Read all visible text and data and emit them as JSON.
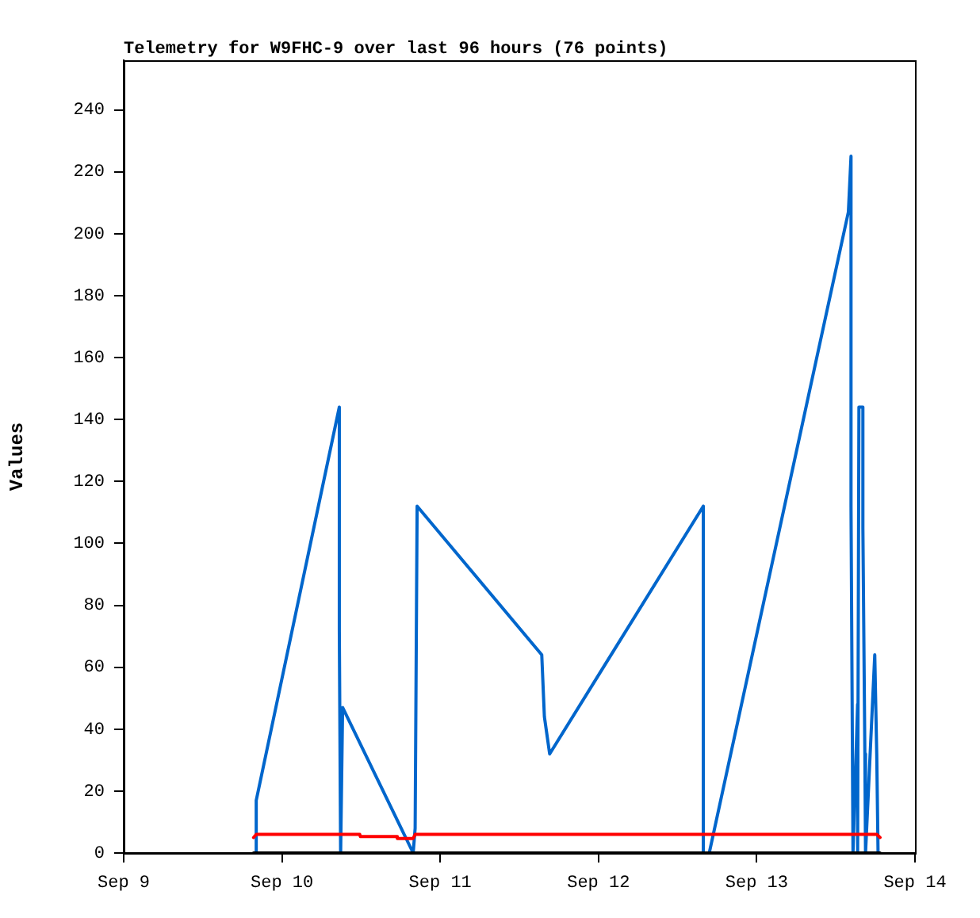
{
  "chart_data": {
    "type": "line",
    "title": "Telemetry for W9FHC-9 over last 96 hours (76 points)",
    "ylabel": "Values",
    "xlim": [
      "--09-09",
      "--09-14"
    ],
    "xticks": [
      {
        "value": "--09-09",
        "label": "Sep 9"
      },
      {
        "value": "--09-10",
        "label": "Sep 10"
      },
      {
        "value": "--09-11",
        "label": "Sep 11"
      },
      {
        "value": "--09-12",
        "label": "Sep 12"
      },
      {
        "value": "--09-13",
        "label": "Sep 13"
      },
      {
        "value": "--09-14",
        "label": "Sep 14"
      }
    ],
    "ylim": [
      0,
      256
    ],
    "yticks": [
      0,
      20,
      40,
      60,
      80,
      100,
      120,
      140,
      160,
      180,
      200,
      220,
      240
    ],
    "grid": false,
    "legend": false,
    "marker": "none",
    "line_style": "solid",
    "series": [
      {
        "color": "#000000",
        "x": [
          "--09-09T19:42",
          "--09-13T18:42"
        ],
        "values": [
          0,
          0
        ]
      },
      {
        "color": "#ff0000",
        "x": [
          "--09-09T19:42",
          "--09-09T20:06",
          "--09-10T11:48",
          "--09-10T11:54",
          "--09-10T17:24",
          "--09-10T17:30",
          "--09-10T19:54",
          "--09-10T20:12",
          "--09-13T18:12",
          "--09-13T18:42"
        ],
        "values": [
          5,
          6,
          6,
          5.3,
          5.3,
          4.7,
          4.7,
          6,
          6,
          5
        ]
      },
      {
        "color": "#0066cc",
        "x": [
          "--09-09T20:06",
          "--09-09T20:06",
          "--09-10T08:42",
          "--09-10T08:42",
          "--09-10T08:54",
          "--09-10T09:12",
          "--09-10T19:54",
          "--09-10T20:12",
          "--09-10T20:30",
          "--09-11T15:24",
          "--09-11T15:48",
          "--09-11T16:36",
          "--09-12T15:54",
          "--09-12T15:54",
          "--09-12T16:48",
          "--09-13T13:54",
          "--09-13T14:18",
          "--09-13T14:18",
          "--09-13T14:36",
          "--09-13T15:18",
          "--09-13T15:18",
          "--09-13T15:30",
          "--09-13T16:06",
          "--09-13T16:06",
          "--09-13T16:24",
          "--09-13T16:30",
          "--09-13T17:54",
          "--09-13T18:12",
          "--09-13T18:24"
        ],
        "values": [
          0,
          17,
          144,
          72,
          0,
          47,
          0,
          8,
          112,
          64,
          44,
          32,
          112,
          0,
          0,
          207,
          225,
          112,
          0,
          48,
          0,
          144,
          144,
          105,
          32,
          0,
          64,
          32,
          0
        ]
      }
    ]
  }
}
